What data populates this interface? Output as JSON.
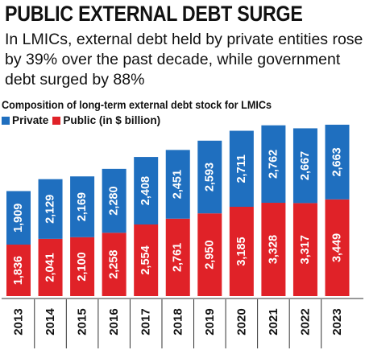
{
  "header": {
    "headline": "PUBLIC EXTERNAL DEBT SURGE",
    "subtitle": "In LMICs, external debt held by private entities rose by 39% over the past decade, while government debt surged by 88%"
  },
  "chart_data": {
    "type": "bar",
    "stacked": true,
    "title": "Composition of long-term external debt stock for LMICs",
    "legend": {
      "position": "top-left",
      "entries": [
        "Private",
        "Public (in $ billion)"
      ]
    },
    "categories": [
      "2013",
      "2014",
      "2015",
      "2016",
      "2017",
      "2018",
      "2019",
      "2020",
      "2021",
      "2022",
      "2023"
    ],
    "series": [
      {
        "name": "Public (in $ billion)",
        "color": "#e02228",
        "values": [
          1836,
          2041,
          2100,
          2258,
          2554,
          2761,
          2950,
          3185,
          3328,
          3317,
          3449
        ],
        "labels": [
          "1,836",
          "2,041",
          "2,100",
          "2,258",
          "2,554",
          "2,761",
          "2,950",
          "3,185",
          "3,328",
          "3,317",
          "3,449"
        ]
      },
      {
        "name": "Private",
        "color": "#1f6fbf",
        "values": [
          1909,
          2129,
          2169,
          2280,
          2408,
          2451,
          2593,
          2711,
          2762,
          2667,
          2663
        ],
        "labels": [
          "1,909",
          "2,129",
          "2,169",
          "2,280",
          "2,408",
          "2,451",
          "2,593",
          "2,711",
          "2,762",
          "2,667",
          "2,663"
        ]
      }
    ],
    "grid": false
  }
}
